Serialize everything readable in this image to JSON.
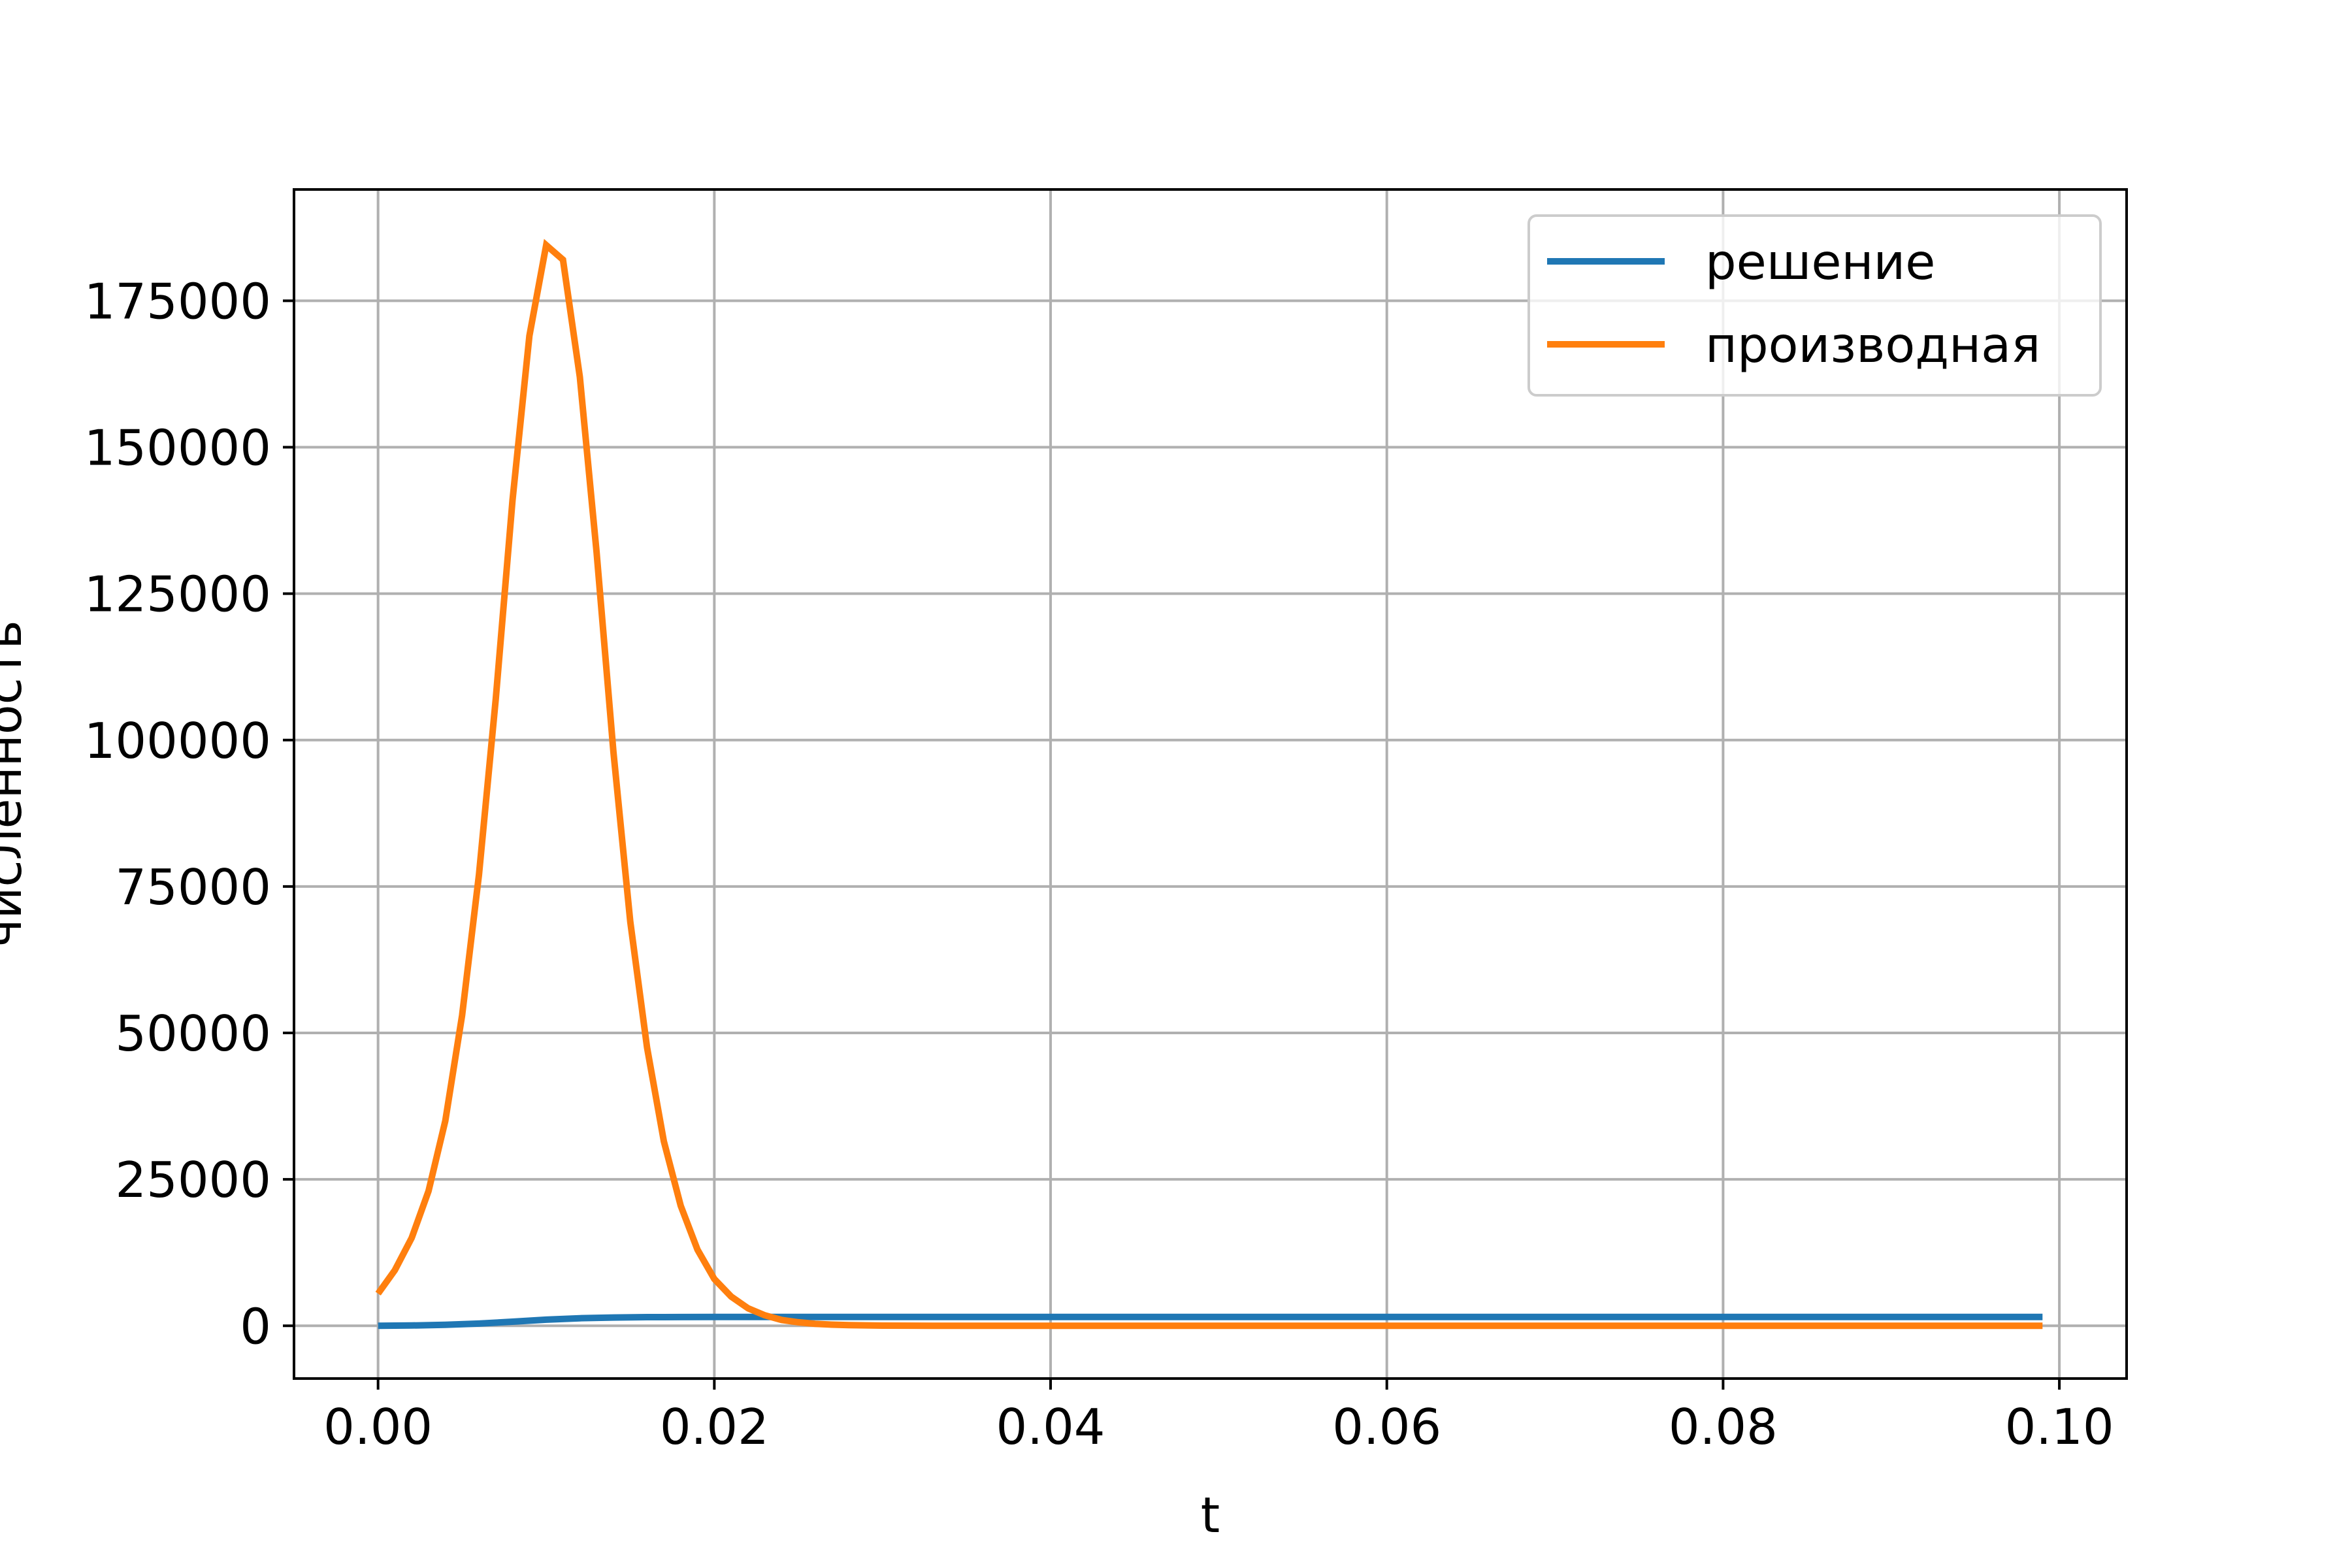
{
  "chart_data": {
    "type": "line",
    "title": "",
    "xlabel": "t",
    "ylabel": "численность",
    "xlim": [
      -0.005,
      0.104
    ],
    "ylim": [
      -9000,
      194000
    ],
    "xticks": [
      0.0,
      0.02,
      0.04,
      0.06,
      0.08,
      0.1
    ],
    "xtick_labels": [
      "0.00",
      "0.02",
      "0.04",
      "0.06",
      "0.08",
      "0.10"
    ],
    "yticks": [
      0,
      25000,
      50000,
      75000,
      100000,
      125000,
      150000,
      175000
    ],
    "ytick_labels": [
      "0",
      "25000",
      "50000",
      "75000",
      "100000",
      "125000",
      "150000",
      "175000"
    ],
    "grid": true,
    "legend_position": "upper right",
    "series": [
      {
        "name": "решение",
        "color": "#1f77b4",
        "x": [
          0.0,
          0.002,
          0.004,
          0.006,
          0.008,
          0.01,
          0.012,
          0.014,
          0.016,
          0.018,
          0.02,
          0.022,
          0.025,
          0.03,
          0.04,
          0.06,
          0.08,
          0.099
        ],
        "y": [
          0,
          60,
          180,
          380,
          700,
          1050,
          1300,
          1420,
          1480,
          1500,
          1510,
          1515,
          1515,
          1515,
          1515,
          1515,
          1515,
          1515
        ]
      },
      {
        "name": "производная",
        "color": "#ff7f0e",
        "x": [
          0.0,
          0.001,
          0.002,
          0.003,
          0.004,
          0.005,
          0.006,
          0.007,
          0.008,
          0.009,
          0.01,
          0.011,
          0.012,
          0.013,
          0.014,
          0.015,
          0.016,
          0.017,
          0.018,
          0.019,
          0.02,
          0.021,
          0.022,
          0.023,
          0.024,
          0.025,
          0.026,
          0.027,
          0.028,
          0.03,
          0.033,
          0.036,
          0.04,
          0.05,
          0.06,
          0.08,
          0.099
        ],
        "y": [
          5500,
          9500,
          15000,
          23000,
          35000,
          53000,
          77000,
          107000,
          141000,
          169000,
          184500,
          182000,
          162000,
          132000,
          98000,
          69000,
          47500,
          31500,
          20500,
          13000,
          8000,
          5000,
          3000,
          1800,
          1000,
          600,
          350,
          200,
          110,
          40,
          10,
          0,
          0,
          0,
          0,
          0,
          0
        ]
      }
    ]
  }
}
